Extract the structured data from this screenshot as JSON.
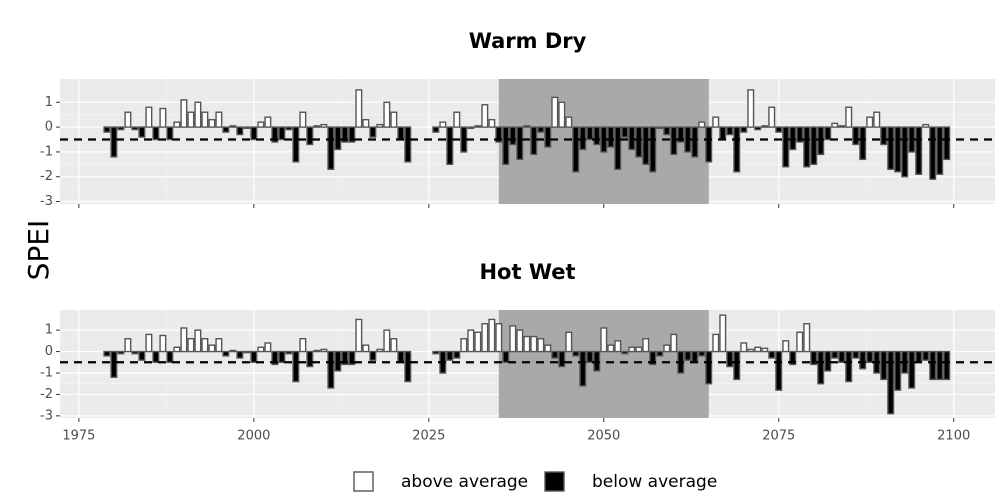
{
  "chart_data": [
    {
      "type": "bar",
      "title": "Warm Dry",
      "x": [
        1979,
        1980,
        1981,
        1982,
        1983,
        1984,
        1985,
        1986,
        1987,
        1988,
        1989,
        1990,
        1991,
        1992,
        1993,
        1994,
        1995,
        1996,
        1997,
        1998,
        1999,
        2000,
        2001,
        2002,
        2003,
        2004,
        2005,
        2006,
        2007,
        2008,
        2009,
        2010,
        2011,
        2012,
        2013,
        2014,
        2015,
        2016,
        2017,
        2018,
        2019,
        2020,
        2021,
        2022,
        2026,
        2027,
        2028,
        2029,
        2030,
        2031,
        2032,
        2033,
        2034,
        2035,
        2036,
        2037,
        2038,
        2039,
        2040,
        2041,
        2042,
        2043,
        2044,
        2045,
        2046,
        2047,
        2048,
        2049,
        2050,
        2051,
        2052,
        2053,
        2054,
        2055,
        2056,
        2057,
        2058,
        2059,
        2060,
        2061,
        2062,
        2063,
        2064,
        2065,
        2066,
        2067,
        2068,
        2069,
        2070,
        2071,
        2072,
        2073,
        2074,
        2075,
        2076,
        2077,
        2078,
        2079,
        2080,
        2081,
        2082,
        2083,
        2084,
        2085,
        2086,
        2087,
        2088,
        2089,
        2090,
        2091,
        2092,
        2093,
        2094,
        2095,
        2096,
        2097,
        2098,
        2099
      ],
      "values": [
        -0.2,
        -1.2,
        -0.1,
        0.6,
        -0.1,
        -0.4,
        0.8,
        -0.5,
        0.75,
        -0.5,
        0.2,
        1.1,
        0.6,
        1.0,
        0.6,
        0.3,
        0.6,
        -0.2,
        0.05,
        -0.3,
        -0.05,
        -0.5,
        0.2,
        0.4,
        -0.6,
        -0.5,
        -0.1,
        -1.4,
        0.6,
        -0.7,
        0.05,
        0.1,
        -1.7,
        -0.9,
        -0.6,
        -0.6,
        1.5,
        0.3,
        -0.4,
        0.1,
        1.0,
        0.6,
        -0.5,
        -1.4,
        -0.2,
        0.2,
        -1.5,
        0.6,
        -1.0,
        -0.05,
        0.05,
        0.9,
        0.3,
        -0.6,
        -1.5,
        -0.7,
        -1.3,
        0.05,
        -1.1,
        -0.2,
        -0.8,
        1.2,
        1.0,
        0.4,
        -1.8,
        -0.9,
        -0.5,
        -0.7,
        -1.0,
        -0.8,
        -1.7,
        -0.4,
        -0.9,
        -1.2,
        -1.5,
        -1.8,
        -0.05,
        -0.3,
        -1.1,
        -0.6,
        -1.0,
        -1.2,
        0.2,
        -1.4,
        0.4,
        -0.5,
        -0.3,
        -1.8,
        -0.2,
        1.5,
        -0.1,
        0.05,
        0.8,
        -0.2,
        -1.6,
        -0.9,
        -0.6,
        -1.6,
        -1.5,
        -1.1,
        -0.5,
        0.15,
        0.05,
        0.8,
        -0.7,
        -1.3,
        0.4,
        0.6,
        -0.7,
        -1.7,
        -1.8,
        -2.0,
        -1.0,
        -1.9,
        0.1,
        -2.1,
        -1.9,
        -1.3
      ],
      "xlim": [
        1972.3,
        2105.9
      ],
      "ylim": [
        -3.1,
        1.94
      ],
      "xticks": [
        1975,
        2000,
        2025,
        2050,
        2075,
        2100
      ],
      "yticks": [
        -3,
        -2,
        -1,
        0,
        1
      ],
      "threshold": -0.5,
      "highlight": [
        2035,
        2065
      ],
      "grid": true
    },
    {
      "type": "bar",
      "title": "Hot Wet",
      "x": [
        1979,
        1980,
        1981,
        1982,
        1983,
        1984,
        1985,
        1986,
        1987,
        1988,
        1989,
        1990,
        1991,
        1992,
        1993,
        1994,
        1995,
        1996,
        1997,
        1998,
        1999,
        2000,
        2001,
        2002,
        2003,
        2004,
        2005,
        2006,
        2007,
        2008,
        2009,
        2010,
        2011,
        2012,
        2013,
        2014,
        2015,
        2016,
        2017,
        2018,
        2019,
        2020,
        2021,
        2022,
        2026,
        2027,
        2028,
        2029,
        2030,
        2031,
        2032,
        2033,
        2034,
        2035,
        2036,
        2037,
        2038,
        2039,
        2040,
        2041,
        2042,
        2043,
        2044,
        2045,
        2046,
        2047,
        2048,
        2049,
        2050,
        2051,
        2052,
        2053,
        2054,
        2055,
        2056,
        2057,
        2058,
        2059,
        2060,
        2061,
        2062,
        2063,
        2064,
        2065,
        2066,
        2067,
        2068,
        2069,
        2070,
        2071,
        2072,
        2073,
        2074,
        2075,
        2076,
        2077,
        2078,
        2079,
        2080,
        2081,
        2082,
        2083,
        2084,
        2085,
        2086,
        2087,
        2088,
        2089,
        2090,
        2091,
        2092,
        2093,
        2094,
        2095,
        2096,
        2097,
        2098,
        2099
      ],
      "values": [
        -0.2,
        -1.2,
        -0.1,
        0.6,
        -0.1,
        -0.4,
        0.8,
        -0.5,
        0.75,
        -0.5,
        0.2,
        1.1,
        0.6,
        1.0,
        0.6,
        0.3,
        0.6,
        -0.2,
        0.05,
        -0.3,
        -0.05,
        -0.5,
        0.2,
        0.4,
        -0.6,
        -0.5,
        -0.1,
        -1.4,
        0.6,
        -0.7,
        0.05,
        0.1,
        -1.7,
        -0.9,
        -0.6,
        -0.6,
        1.5,
        0.3,
        -0.4,
        0.1,
        1.0,
        0.6,
        -0.5,
        -1.4,
        -0.1,
        -1.0,
        -0.4,
        -0.3,
        0.6,
        1.0,
        0.9,
        1.3,
        1.5,
        1.3,
        -0.5,
        1.2,
        1.0,
        0.7,
        0.7,
        0.6,
        0.3,
        -0.3,
        -0.7,
        0.9,
        -0.2,
        -1.6,
        -0.5,
        -0.9,
        1.1,
        0.3,
        0.5,
        -0.1,
        0.2,
        0.2,
        0.6,
        -0.6,
        -0.2,
        0.3,
        0.8,
        -1.0,
        -0.4,
        -0.5,
        -0.2,
        -1.5,
        0.8,
        1.7,
        -0.7,
        -1.3,
        0.4,
        0.1,
        0.2,
        0.15,
        -0.3,
        -1.8,
        0.5,
        -0.6,
        0.9,
        1.3,
        -0.6,
        -1.5,
        -0.9,
        -0.3,
        -0.5,
        -1.4,
        -0.3,
        -0.8,
        -0.5,
        -1.0,
        -1.3,
        -2.9,
        -1.8,
        -1.0,
        -1.7,
        -0.5,
        -0.4,
        -1.3,
        -1.3,
        -1.3
      ],
      "xlim": [
        1972.3,
        2105.9
      ],
      "ylim": [
        -3.1,
        1.94
      ],
      "xticks": [
        1975,
        2000,
        2025,
        2050,
        2075,
        2100
      ],
      "yticks": [
        -3,
        -2,
        -1,
        0,
        1
      ],
      "threshold": -0.5,
      "highlight": [
        2035,
        2065
      ],
      "grid": true
    }
  ],
  "y_label": "SPEI",
  "legend": [
    {
      "name": "above average",
      "color": "#ffffff"
    },
    {
      "name": "below average",
      "color": "#000000"
    }
  ]
}
